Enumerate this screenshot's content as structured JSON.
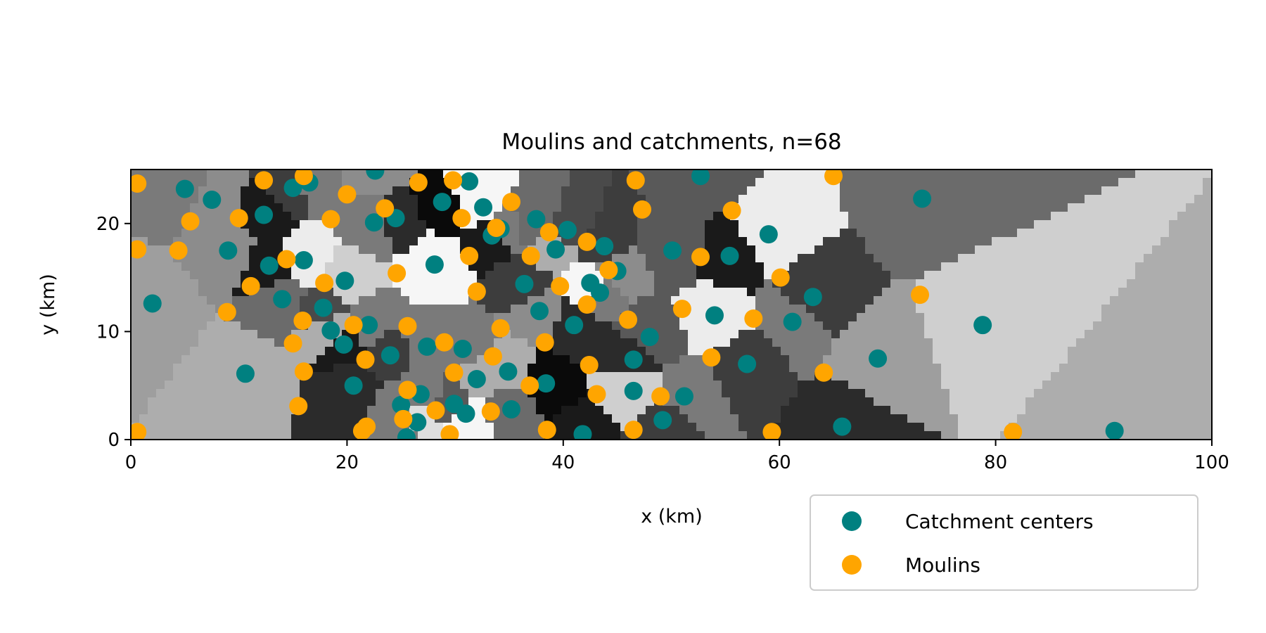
{
  "chart_data": {
    "type": "scatter",
    "title": "Moulins and catchments, n=68",
    "xlabel": "x (km)",
    "ylabel": "y (km)",
    "xlim": [
      0,
      100
    ],
    "ylim": [
      0,
      25
    ],
    "x_ticks": [
      "0",
      "20",
      "40",
      "60",
      "80",
      "100"
    ],
    "y_ticks": [
      "0",
      "10",
      "20"
    ],
    "grid": false,
    "legend": {
      "position": "lower-right, below axes"
    },
    "background": "grayscale catchment regions (Voronoi-like partition, one shade per catchment)",
    "series": [
      {
        "name": "Catchment centers",
        "color": "#008080",
        "points": [
          [
            5.0,
            23.2
          ],
          [
            7.5,
            22.2
          ],
          [
            12.3,
            20.8
          ],
          [
            15.0,
            23.3
          ],
          [
            16.5,
            23.8
          ],
          [
            9.0,
            17.5
          ],
          [
            12.8,
            16.1
          ],
          [
            16.0,
            16.6
          ],
          [
            2.0,
            12.6
          ],
          [
            14.0,
            13.0
          ],
          [
            17.8,
            12.2
          ],
          [
            19.8,
            14.7
          ],
          [
            18.5,
            10.1
          ],
          [
            19.7,
            8.8
          ],
          [
            22.0,
            10.6
          ],
          [
            24.0,
            7.8
          ],
          [
            10.6,
            6.1
          ],
          [
            20.6,
            5.0
          ],
          [
            22.6,
            24.9
          ],
          [
            22.5,
            20.1
          ],
          [
            24.5,
            20.5
          ],
          [
            28.8,
            22.0
          ],
          [
            31.3,
            23.9
          ],
          [
            32.6,
            21.5
          ],
          [
            33.4,
            18.9
          ],
          [
            34.2,
            19.5
          ],
          [
            28.1,
            16.2
          ],
          [
            36.4,
            14.4
          ],
          [
            37.5,
            20.4
          ],
          [
            37.8,
            11.9
          ],
          [
            39.3,
            17.6
          ],
          [
            40.4,
            19.4
          ],
          [
            41.0,
            10.6
          ],
          [
            42.5,
            14.5
          ],
          [
            43.4,
            13.6
          ],
          [
            43.8,
            17.9
          ],
          [
            45.0,
            15.6
          ],
          [
            48.0,
            9.5
          ],
          [
            46.5,
            7.4
          ],
          [
            46.5,
            4.5
          ],
          [
            50.1,
            17.5
          ],
          [
            52.7,
            24.4
          ],
          [
            55.4,
            17.0
          ],
          [
            54.0,
            11.5
          ],
          [
            57.0,
            7.0
          ],
          [
            59.0,
            19.0
          ],
          [
            61.2,
            10.9
          ],
          [
            63.1,
            13.2
          ],
          [
            69.1,
            7.5
          ],
          [
            73.2,
            22.3
          ],
          [
            78.8,
            10.6
          ],
          [
            91.0,
            0.8
          ],
          [
            65.8,
            1.2
          ],
          [
            49.2,
            1.8
          ],
          [
            51.2,
            4.0
          ],
          [
            41.8,
            0.5
          ],
          [
            38.4,
            5.2
          ],
          [
            35.2,
            2.8
          ],
          [
            34.9,
            6.3
          ],
          [
            32.0,
            5.6
          ],
          [
            31.0,
            2.4
          ],
          [
            29.9,
            3.3
          ],
          [
            30.7,
            8.4
          ],
          [
            27.4,
            8.6
          ],
          [
            26.8,
            4.2
          ],
          [
            26.5,
            1.6
          ],
          [
            25.5,
            0.2
          ],
          [
            25.0,
            3.2
          ]
        ]
      },
      {
        "name": "Moulins",
        "color": "#ffa500",
        "points": [
          [
            0.6,
            23.7
          ],
          [
            0.6,
            17.6
          ],
          [
            4.4,
            17.5
          ],
          [
            5.5,
            20.2
          ],
          [
            10.0,
            20.5
          ],
          [
            12.3,
            24.0
          ],
          [
            16.0,
            24.4
          ],
          [
            18.5,
            20.4
          ],
          [
            20.0,
            22.7
          ],
          [
            23.5,
            21.4
          ],
          [
            26.6,
            23.8
          ],
          [
            29.8,
            24.0
          ],
          [
            30.6,
            20.5
          ],
          [
            35.2,
            22.0
          ],
          [
            33.8,
            19.6
          ],
          [
            31.3,
            17.0
          ],
          [
            37.0,
            17.0
          ],
          [
            38.7,
            19.2
          ],
          [
            39.7,
            14.2
          ],
          [
            42.2,
            12.5
          ],
          [
            42.2,
            18.3
          ],
          [
            44.2,
            15.7
          ],
          [
            46.0,
            11.1
          ],
          [
            47.3,
            21.3
          ],
          [
            46.7,
            24.0
          ],
          [
            51.0,
            12.1
          ],
          [
            52.7,
            16.9
          ],
          [
            55.6,
            21.2
          ],
          [
            57.6,
            11.2
          ],
          [
            60.1,
            15.0
          ],
          [
            64.1,
            6.2
          ],
          [
            65.0,
            24.4
          ],
          [
            73.0,
            13.4
          ],
          [
            53.7,
            7.6
          ],
          [
            49.0,
            4.0
          ],
          [
            46.5,
            0.9
          ],
          [
            43.1,
            4.2
          ],
          [
            42.4,
            6.9
          ],
          [
            38.3,
            9.0
          ],
          [
            38.5,
            0.9
          ],
          [
            36.9,
            5.0
          ],
          [
            34.2,
            10.3
          ],
          [
            33.5,
            7.7
          ],
          [
            33.3,
            2.6
          ],
          [
            32.0,
            13.7
          ],
          [
            29.9,
            6.2
          ],
          [
            29.0,
            9.0
          ],
          [
            29.5,
            0.5
          ],
          [
            28.2,
            2.7
          ],
          [
            25.6,
            10.5
          ],
          [
            25.6,
            4.6
          ],
          [
            25.2,
            1.9
          ],
          [
            21.8,
            1.2
          ],
          [
            21.4,
            0.8
          ],
          [
            21.7,
            7.4
          ],
          [
            20.6,
            10.6
          ],
          [
            24.6,
            15.4
          ],
          [
            16.0,
            6.3
          ],
          [
            15.5,
            3.1
          ],
          [
            15.0,
            8.9
          ],
          [
            15.9,
            11.0
          ],
          [
            17.9,
            14.5
          ],
          [
            14.4,
            16.7
          ],
          [
            11.1,
            14.2
          ],
          [
            8.9,
            11.8
          ],
          [
            0.6,
            0.7
          ],
          [
            59.3,
            0.7
          ],
          [
            81.6,
            0.7
          ]
        ]
      }
    ]
  }
}
